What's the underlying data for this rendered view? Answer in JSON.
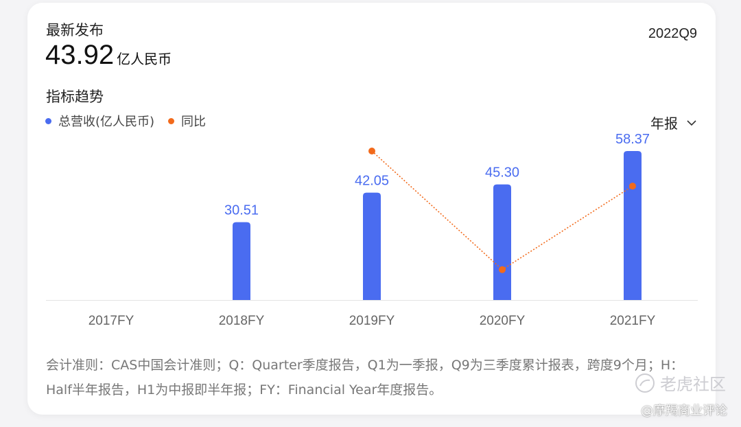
{
  "header": {
    "latest_label": "最新发布",
    "latest_value": "43.92",
    "latest_unit": "亿人民币",
    "period": "2022Q9"
  },
  "section_title": "指标趋势",
  "legend": {
    "revenue_label": "总营收(亿人民币)",
    "yoy_label": "同比"
  },
  "period_selector": {
    "label": "年报",
    "icon": "chevron-down-icon"
  },
  "colors": {
    "bar": "#4a6cf0",
    "line": "#f26a1b",
    "axis": "#e3e3e3",
    "label_value": "#4a6cf0",
    "tick": "#666666"
  },
  "chart_data": {
    "type": "bar",
    "categories": [
      "2017FY",
      "2018FY",
      "2019FY",
      "2020FY",
      "2021FY"
    ],
    "series": [
      {
        "name": "总营收(亿人民币)",
        "type": "bar",
        "values": [
          null,
          30.51,
          42.05,
          45.3,
          58.37
        ],
        "labels": [
          "",
          "30.51",
          "42.05",
          "45.30",
          "58.37"
        ]
      },
      {
        "name": "同比",
        "type": "line",
        "values": [
          null,
          null,
          37.8,
          7.7,
          28.9
        ]
      }
    ],
    "ylim": [
      0,
      58.37
    ],
    "y2lim": [
      0,
      37.8
    ],
    "grid": false,
    "legend_position": "top-left"
  },
  "footnote": "会计准则：CAS中国会计准则；Q：Quarter季度报告，Q1为一季报，Q9为三季度累计报表，跨度9个月；H：Half半年报告，H1为中报即半年报；FY：Financial Year年度报告。",
  "watermarks": {
    "primary": "老虎社区",
    "secondary": "@摩羯商业评论"
  }
}
